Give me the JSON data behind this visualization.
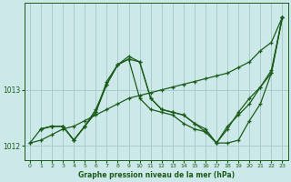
{
  "title": "Graphe pression niveau de la mer (hPa)",
  "background_color": "#cce8e8",
  "grid_color": "#aacccc",
  "line_color": "#1a5c1a",
  "xlim": [
    -0.5,
    23.5
  ],
  "ylim": [
    1011.75,
    1014.55
  ],
  "yticks": [
    1012,
    1013
  ],
  "ytick_labels": [
    "1012",
    "1013"
  ],
  "xticks": [
    0,
    1,
    2,
    3,
    4,
    5,
    6,
    7,
    8,
    9,
    10,
    11,
    12,
    13,
    14,
    15,
    16,
    17,
    18,
    19,
    20,
    21,
    22,
    23
  ],
  "lines": [
    {
      "x": [
        0,
        1,
        2,
        3,
        4,
        5,
        6,
        7,
        8,
        9,
        10,
        11,
        12,
        13,
        14,
        15,
        16,
        17,
        18,
        19,
        20,
        21,
        22,
        23
      ],
      "y": [
        1012.05,
        1012.1,
        1012.2,
        1012.3,
        1012.35,
        1012.45,
        1012.55,
        1012.65,
        1012.75,
        1012.85,
        1012.9,
        1012.95,
        1013.0,
        1013.05,
        1013.1,
        1013.15,
        1013.2,
        1013.25,
        1013.3,
        1013.4,
        1013.5,
        1013.7,
        1013.85,
        1014.3
      ]
    },
    {
      "x": [
        1,
        2,
        3,
        4,
        5,
        6,
        7,
        8,
        9,
        10,
        11,
        12,
        13,
        14,
        15,
        16,
        17,
        18,
        19,
        20,
        21,
        22,
        23
      ],
      "y": [
        1012.3,
        1012.35,
        1012.35,
        1012.1,
        1012.35,
        1012.6,
        1013.15,
        1013.45,
        1013.55,
        1013.5,
        1012.85,
        1012.65,
        1012.6,
        1012.55,
        1012.4,
        1012.25,
        1012.05,
        1012.05,
        1012.1,
        1012.45,
        1012.75,
        1013.3,
        1014.3
      ]
    },
    {
      "x": [
        1,
        2,
        3,
        4,
        5,
        6,
        7,
        8,
        9,
        10,
        11,
        12,
        13,
        14,
        15,
        16,
        17,
        18,
        19,
        20,
        21,
        22,
        23
      ],
      "y": [
        1012.3,
        1012.35,
        1012.35,
        1012.1,
        1012.35,
        1012.65,
        1013.1,
        1013.45,
        1013.6,
        1013.5,
        1012.85,
        1012.65,
        1012.6,
        1012.55,
        1012.4,
        1012.3,
        1012.05,
        1012.3,
        1012.6,
        1012.85,
        1013.05,
        1013.35,
        1014.3
      ]
    },
    {
      "x": [
        0,
        1,
        2,
        3,
        4,
        5,
        6,
        7,
        8,
        9,
        10,
        11,
        12,
        13,
        14,
        15,
        16,
        17,
        18,
        19,
        20,
        21,
        22,
        23
      ],
      "y": [
        1012.05,
        1012.3,
        1012.35,
        1012.35,
        1012.1,
        1012.35,
        1012.6,
        1013.1,
        1013.45,
        1013.55,
        1012.85,
        1012.65,
        1012.6,
        1012.55,
        1012.4,
        1012.3,
        1012.25,
        1012.05,
        1012.35,
        1012.55,
        1012.75,
        1013.05,
        1013.3,
        1014.3
      ]
    }
  ]
}
